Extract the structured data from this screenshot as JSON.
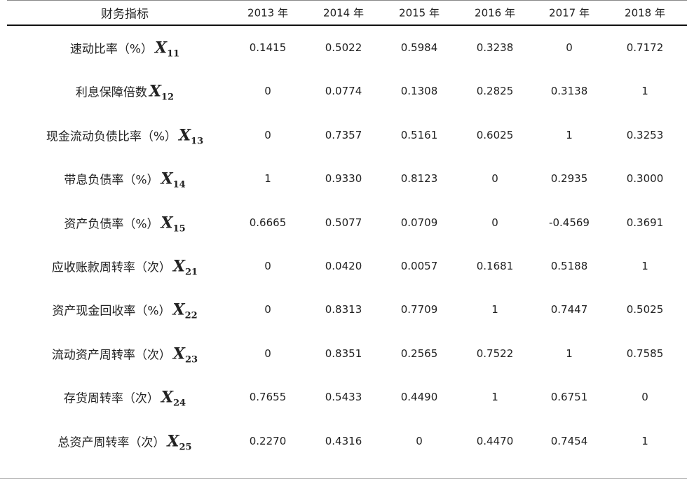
{
  "table": {
    "header": [
      "财务指标",
      "2013 年",
      "2014 年",
      "2015 年",
      "2016 年",
      "2017 年",
      "2018 年"
    ],
    "rows": [
      {
        "label": "速动比率（%）",
        "symbol": "X",
        "sub": "11",
        "cells": [
          "0.1415",
          "0.5022",
          "0.5984",
          "0.3238",
          "0",
          "0.7172"
        ]
      },
      {
        "label": "利息保障倍数",
        "symbol": "X",
        "sub": "12",
        "cells": [
          "0",
          "0.0774",
          "0.1308",
          "0.2825",
          "0.3138",
          "1"
        ]
      },
      {
        "label": "现金流动负债比率（%）",
        "symbol": "X",
        "sub": "13",
        "cells": [
          "0",
          "0.7357",
          "0.5161",
          "0.6025",
          "1",
          "0.3253"
        ]
      },
      {
        "label": "带息负债率（%）",
        "symbol": "X",
        "sub": "14",
        "cells": [
          "1",
          "0.9330",
          "0.8123",
          "0",
          "0.2935",
          "0.3000"
        ]
      },
      {
        "label": "资产负债率（%）",
        "symbol": "X",
        "sub": "15",
        "cells": [
          "0.6665",
          "0.5077",
          "0.0709",
          "0",
          "-0.4569",
          "0.3691"
        ]
      },
      {
        "label": "应收账款周转率（次）",
        "symbol": "X",
        "sub": "21",
        "cells": [
          "0",
          "0.0420",
          "0.0057",
          "0.1681",
          "0.5188",
          "1"
        ]
      },
      {
        "label": "资产现金回收率（%）",
        "symbol": "X",
        "sub": "22",
        "cells": [
          "0",
          "0.8313",
          "0.7709",
          "1",
          "0.7447",
          "0.5025"
        ]
      },
      {
        "label": "流动资产周转率（次）",
        "symbol": "X",
        "sub": "23",
        "cells": [
          "0",
          "0.8351",
          "0.2565",
          "0.7522",
          "1",
          "0.7585"
        ]
      },
      {
        "label": "存货周转率（次）",
        "symbol": "X",
        "sub": "24",
        "cells": [
          "0.7655",
          "0.5433",
          "0.4490",
          "1",
          "0.6751",
          "0"
        ]
      },
      {
        "label": "总资产周转率（次）",
        "symbol": "X",
        "sub": "25",
        "cells": [
          "0.2270",
          "0.4316",
          "0",
          "0.4470",
          "0.7454",
          "1"
        ]
      }
    ]
  }
}
